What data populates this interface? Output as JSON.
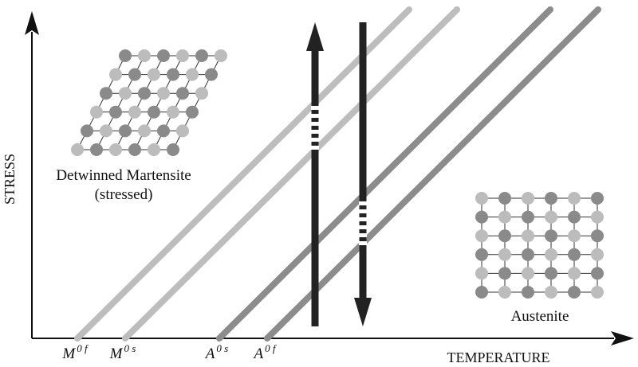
{
  "axes": {
    "y_label": "STRESS",
    "x_label": "TEMPERATURE"
  },
  "temperature_marks": [
    {
      "base": "M",
      "sup": "0 f"
    },
    {
      "base": "M",
      "sup": "0 s"
    },
    {
      "base": "A",
      "sup": "0 s"
    },
    {
      "base": "A",
      "sup": "0 f"
    }
  ],
  "phases": {
    "martensite": [
      "Detwinned Martensite",
      "(stressed)"
    ],
    "austenite": "Austenite"
  }
}
